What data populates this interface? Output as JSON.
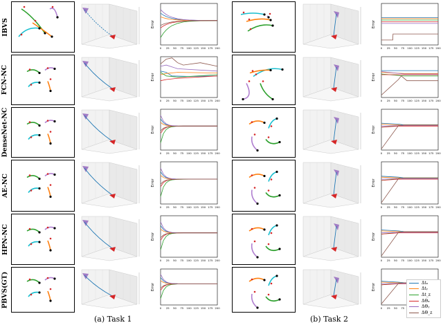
{
  "row_labels": [
    "IBVS",
    "FCN-NC",
    "DenseNet-NC",
    "AE-NC",
    "HPN-NC",
    "PBVS(GT)"
  ],
  "error_axis_label": "Error",
  "task1": {
    "caption": "(a)  Task 1",
    "x_ticks": [
      "0",
      "25",
      "50",
      "75",
      "100",
      "125",
      "150",
      "175",
      "200"
    ]
  },
  "task2": {
    "caption": "(b)  Task 2",
    "x_ticks": [
      "0",
      "25",
      "50",
      "75",
      "100",
      "125",
      "150",
      "175",
      "200"
    ]
  },
  "legend": [
    {
      "label": "Δtₓ",
      "color": "#1f77b4"
    },
    {
      "label": "Δtᵧ",
      "color": "#ff7f0e"
    },
    {
      "label": "Δt_z",
      "color": "#2ca02c"
    },
    {
      "label": "ΔΘₓ",
      "color": "#d62728"
    },
    {
      "label": "ΔΘᵧ",
      "color": "#9467bd"
    },
    {
      "label": "ΔΘ_z",
      "color": "#8c564b"
    }
  ],
  "colors": {
    "tx": "#1f77b4",
    "ty": "#ff7f0e",
    "tz": "#2ca02c",
    "rx": "#d62728",
    "ry": "#9467bd",
    "rz": "#8c564b",
    "cyan": "#17becf",
    "green": "#2ca02c",
    "orange": "#ff7f0e",
    "purple": "#b07fd0"
  }
}
